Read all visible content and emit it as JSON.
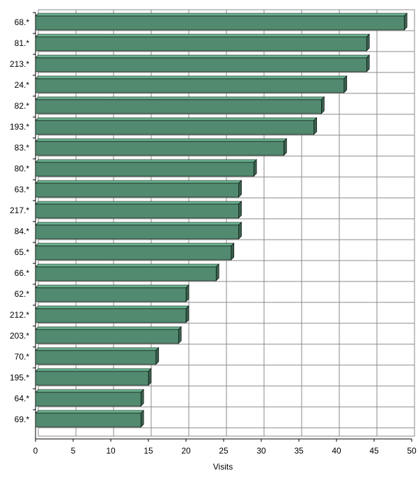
{
  "chart_data": {
    "type": "hbar3d",
    "x_label": "Visits",
    "categories": [
      "68.*",
      "81.*",
      "213.*",
      "24.*",
      "82.*",
      "193.*",
      "83.*",
      "80.*",
      "63.*",
      "217.*",
      "84.*",
      "65.*",
      "66.*",
      "62.*",
      "212.*",
      "203.*",
      "70.*",
      "195.*",
      "64.*",
      "69.*"
    ],
    "values": [
      49,
      44,
      44,
      41,
      38,
      37,
      33,
      29,
      27,
      27,
      27,
      26,
      24,
      20,
      20,
      19,
      16,
      15,
      14,
      14
    ],
    "color": "#528a6f",
    "xlim": [
      0,
      50
    ],
    "xticks": [
      0,
      5,
      10,
      15,
      20,
      25,
      30,
      35,
      40,
      45,
      50
    ],
    "grid": true
  }
}
